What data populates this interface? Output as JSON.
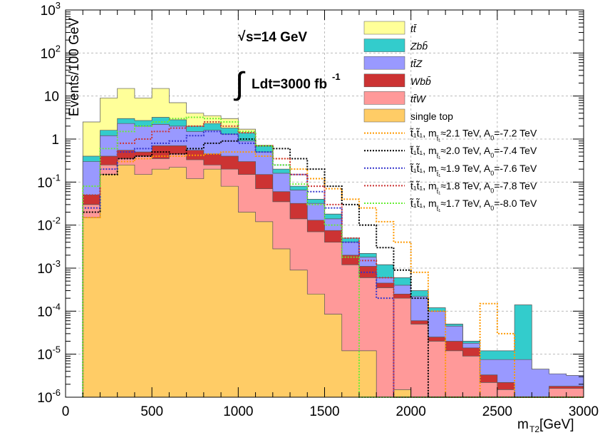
{
  "chart_data": {
    "type": "area",
    "title": "",
    "annotations": {
      "energy_sqrt": "√",
      "energy_text": "s=14 GeV",
      "integral_sign": "∫",
      "lumi_text": "Ldt=3000 fb",
      "lumi_exp": "-1"
    },
    "xlabel": "m",
    "xlabel_sub": "T2",
    "xlabel_unit": " [GeV]",
    "ylabel": "Events/100 GeV",
    "xlim": [
      0,
      3000
    ],
    "ylim": [
      1e-06,
      1000
    ],
    "yscale": "log",
    "grid": true,
    "legend_position": "top-right",
    "x_ticks": [
      "0",
      "500",
      "1000",
      "1500",
      "2000",
      "2500",
      "3000"
    ],
    "y_ticks": [
      {
        "base": "10",
        "exp": "3",
        "v": 1000
      },
      {
        "base": "10",
        "exp": "2",
        "v": 100
      },
      {
        "base": "10",
        "exp": "",
        "v": 10
      },
      {
        "base": "1",
        "exp": "",
        "v": 1
      },
      {
        "base": "10",
        "exp": "-1",
        "v": 0.1
      },
      {
        "base": "10",
        "exp": "-2",
        "v": 0.01
      },
      {
        "base": "10",
        "exp": "-3",
        "v": 0.001
      },
      {
        "base": "10",
        "exp": "-4",
        "v": 0.0001
      },
      {
        "base": "10",
        "exp": "-5",
        "v": 1e-05
      },
      {
        "base": "10",
        "exp": "-6",
        "v": 1e-06
      }
    ],
    "bin_edges_start": 100,
    "bin_width": 100,
    "stacked_cumulative": [
      {
        "name": "tt̄",
        "fill": "#ffff99",
        "values": [
          2.5,
          9,
          15,
          9,
          15,
          7,
          4,
          3.5,
          3,
          1.7,
          0.7,
          0.2,
          0.08,
          0.04,
          0.018,
          0.005,
          0.0022,
          0.0012,
          0.0006,
          0.0003,
          0.00012,
          5e-05,
          2e-05,
          1.2e-05,
          1.2e-05,
          4e-06,
          2.5e-06,
          2.5e-06,
          2.5e-06
        ]
      },
      {
        "name": "Zbb̄",
        "fill": "#33cccc",
        "values": [
          0.4,
          1.6,
          3,
          2.7,
          3.2,
          2.8,
          2,
          2.3,
          1.8,
          1.4,
          0.7,
          0.2,
          0.08,
          0.04,
          0.018,
          0.005,
          0.0022,
          0.0012,
          0.0006,
          0.0003,
          0.00012,
          5e-05,
          2e-05,
          1.2e-05,
          1.2e-05,
          0.00014,
          2.5e-06,
          2.5e-06,
          2.5e-06
        ]
      },
      {
        "name": "tt̄Z",
        "fill": "#9999ff",
        "values": [
          0.3,
          1.2,
          2.3,
          2,
          2.2,
          2,
          1.5,
          1.6,
          1.3,
          0.9,
          0.5,
          0.16,
          0.065,
          0.032,
          0.014,
          0.004,
          0.0018,
          0.0006,
          0.0004,
          0.00022,
          0.0001,
          4.5e-05,
          1.8e-05,
          7.5e-06,
          7.5e-06,
          7.5e-06,
          4.5e-06,
          3.5e-06,
          3.2e-06
        ]
      },
      {
        "name": "Wbb̄",
        "fill": "#cc3333",
        "values": [
          0.05,
          0.4,
          0.55,
          0.5,
          0.7,
          0.7,
          0.55,
          0.45,
          0.4,
          0.3,
          0.15,
          0.06,
          0.032,
          0.013,
          0.0075,
          0.002,
          0.0011,
          0.00045,
          0.00025,
          6e-05,
          2.5e-05,
          2e-05,
          1.4e-05,
          3.3e-06,
          2.2e-06,
          1e-06,
          1e-06,
          1.8e-06,
          1.8e-06
        ]
      },
      {
        "name": "tt̄W",
        "fill": "#ff9999",
        "values": [
          0.03,
          0.25,
          0.35,
          0.4,
          0.35,
          0.45,
          0.33,
          0.25,
          0.2,
          0.15,
          0.07,
          0.035,
          0.014,
          0.007,
          0.004,
          0.0012,
          0.0006,
          0.00035,
          0.0002,
          5e-05,
          2e-05,
          1.2e-05,
          9e-06,
          2.2e-06,
          1.5e-06,
          1e-06,
          1e-06,
          1.6e-06,
          1.6e-06
        ]
      },
      {
        "name": "single top",
        "fill": "#ffcc66",
        "values": [
          0.015,
          0.15,
          0.25,
          0.15,
          0.2,
          0.22,
          0.12,
          0.2,
          0.08,
          0.02,
          0.012,
          0.0028,
          0.0009,
          0.00025,
          8.5e-05,
          1.2e-05,
          1.2e-05,
          1e-09,
          1.5e-06,
          1e-09,
          1e-09,
          1e-09,
          1e-09,
          1e-09,
          1e-09,
          1e-09,
          1e-09,
          1e-09,
          1e-09
        ]
      }
    ],
    "signals": [
      {
        "label_pre": "t̃",
        "label_mid": "₁t̃",
        "label_post": "₁,  m",
        "label_sub": "t̃₁",
        "label_rest": "≈2.1 TeV, A",
        "label_sub2": "0",
        "label_end": "=-7.2 TeV",
        "color": "#ff9900",
        "values": [
          0.015,
          0.15,
          0.3,
          0.35,
          0.4,
          0.4,
          0.42,
          0.45,
          0.5,
          0.5,
          0.4,
          0.35,
          0.2,
          0.12,
          0.07,
          0.04,
          0.025,
          0.012,
          0.004,
          0.0008,
          0.0001,
          2e-07,
          2e-07,
          0.00015,
          3e-05,
          2e-07,
          2e-07,
          2e-07,
          2e-07
        ]
      },
      {
        "label_pre": "t̃",
        "label_mid": "₁t̃",
        "label_post": "₁,  m",
        "label_sub": "t̃₁",
        "label_rest": "≈2.0 TeV, A",
        "label_sub2": "0",
        "label_end": "=-7.4 TeV",
        "color": "#000000",
        "values": [
          0.02,
          0.15,
          0.35,
          0.4,
          0.5,
          0.45,
          0.6,
          0.8,
          0.9,
          1,
          0.7,
          0.6,
          0.35,
          0.2,
          0.08,
          0.03,
          0.01,
          0.003,
          0.0009,
          0.0002,
          2e-07,
          2e-07,
          2e-07,
          2e-07,
          2e-07,
          2e-07,
          2e-07,
          2e-07,
          2e-07
        ]
      },
      {
        "label_pre": "t̃",
        "label_mid": "₁t̃",
        "label_post": "₁,  m",
        "label_sub": "t̃₁",
        "label_rest": "≈1.9 TeV, A",
        "label_sub2": "0",
        "label_end": "=-7.6 TeV",
        "color": "#3333cc",
        "values": [
          0.025,
          0.2,
          0.5,
          0.6,
          0.8,
          0.9,
          1.2,
          1.5,
          1.3,
          0.8,
          0.5,
          0.25,
          0.15,
          0.06,
          0.025,
          0.004,
          0.0008,
          0.0002,
          2e-07,
          2e-07,
          2e-07,
          2e-07,
          2e-07,
          2e-07,
          2e-07,
          2e-07,
          2e-07,
          2e-07,
          2e-07
        ]
      },
      {
        "label_pre": "t̃",
        "label_mid": "₁t̃",
        "label_post": "₁,  m",
        "label_sub": "t̃₁",
        "label_rest": "≈1.8 TeV, A",
        "label_sub2": "0",
        "label_end": "=-7.8 TeV",
        "color": "#cc3333",
        "values": [
          0.05,
          0.3,
          0.8,
          1,
          1.5,
          1.8,
          2,
          2.5,
          2,
          1.4,
          0.7,
          0.35,
          0.15,
          0.08,
          0.03,
          0.005,
          0.0015,
          0.0006,
          2e-07,
          2e-07,
          2e-07,
          2e-07,
          2e-07,
          2e-07,
          2e-07,
          2e-07,
          2e-07,
          2e-07,
          2e-07
        ]
      },
      {
        "label_pre": "t̃",
        "label_mid": "₁t̃",
        "label_post": "₁,  m",
        "label_sub": "t̃₁",
        "label_rest": "≈1.7 TeV, A",
        "label_sub2": "0",
        "label_end": "=-8.0 TeV",
        "color": "#66ee33",
        "values": [
          0.08,
          0.6,
          1.5,
          2,
          2.5,
          3,
          3.2,
          3,
          2.5,
          1.5,
          0.7,
          0.25,
          0.09,
          0.03,
          0.01,
          0.0018,
          2e-07,
          2e-07,
          2e-07,
          2e-07,
          2e-07,
          2e-07,
          2e-07,
          2e-07,
          2e-07,
          2e-07,
          2e-07,
          2e-07,
          2e-07
        ]
      }
    ]
  }
}
